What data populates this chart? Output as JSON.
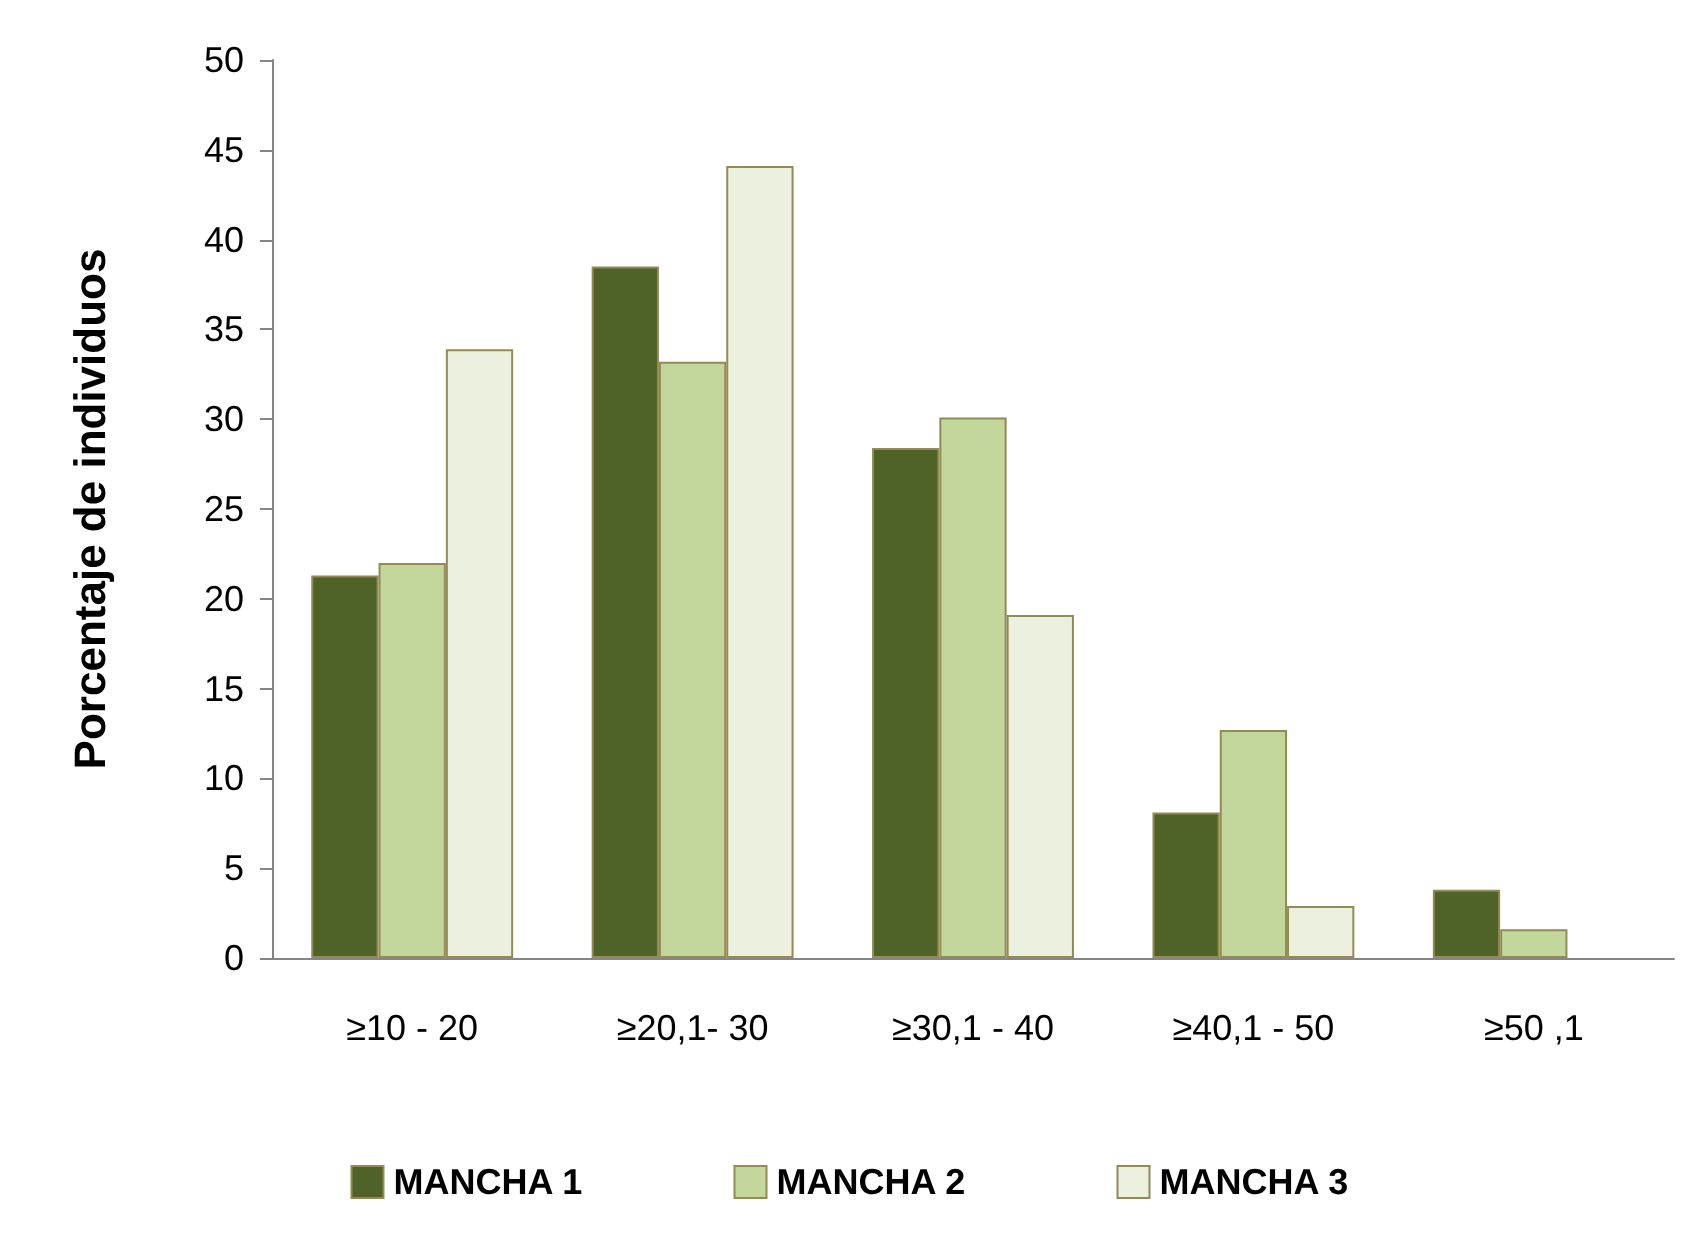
{
  "chart_data": {
    "type": "bar",
    "ylabel": "Porcentaje de individuos",
    "categories": [
      "≥10 - 20",
      "≥20,1- 30",
      "≥30,1 - 40",
      "≥40,1 - 50",
      "≥50 ,1"
    ],
    "series": [
      {
        "name": "MANCHA 1",
        "color": "#4f6228",
        "values": [
          21.3,
          38.5,
          28.4,
          8.1,
          3.8
        ]
      },
      {
        "name": "MANCHA 2",
        "color": "#c3d69b",
        "values": [
          22.0,
          33.2,
          30.1,
          12.7,
          1.6
        ]
      },
      {
        "name": "MANCHA 3",
        "color": "#ebf1de",
        "values": [
          33.9,
          44.1,
          19.1,
          2.9,
          null
        ]
      }
    ],
    "ylim": [
      0,
      50
    ],
    "yticks": [
      0,
      5,
      10,
      15,
      20,
      25,
      30,
      35,
      40,
      45,
      50
    ],
    "grid": false,
    "legend": "bottom"
  }
}
